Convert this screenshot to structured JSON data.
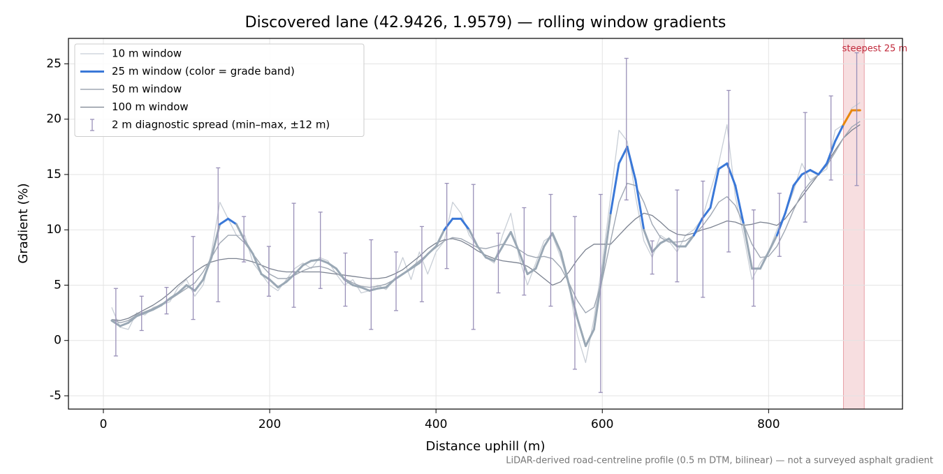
{
  "chart_data": {
    "type": "line",
    "title": "Discovered lane (42.9426, 1.9579) — rolling window gradients",
    "x_label": "Distance uphill (m)",
    "y_label": "Gradient (%)",
    "footnote": "LiDAR-derived road-centreline profile (0.5 m DTM, bilinear) — not a surveyed asphalt gradient",
    "xlim": [
      -42,
      961
    ],
    "ylim": [
      -6.2,
      27.3
    ],
    "xticks": [
      0,
      200,
      400,
      600,
      800
    ],
    "yticks": [
      -5,
      0,
      5,
      10,
      15,
      20,
      25
    ],
    "grid": true,
    "legend": "upper left",
    "x": [
      10,
      20,
      30,
      40,
      50,
      60,
      70,
      80,
      90,
      100,
      110,
      120,
      130,
      140,
      150,
      160,
      170,
      180,
      190,
      200,
      210,
      220,
      230,
      240,
      250,
      260,
      270,
      280,
      290,
      300,
      310,
      320,
      330,
      340,
      350,
      360,
      370,
      380,
      390,
      400,
      410,
      420,
      430,
      440,
      450,
      460,
      470,
      480,
      490,
      500,
      510,
      520,
      530,
      540,
      550,
      560,
      570,
      580,
      590,
      600,
      610,
      620,
      630,
      640,
      650,
      660,
      670,
      680,
      690,
      700,
      710,
      720,
      730,
      740,
      750,
      760,
      770,
      780,
      790,
      800,
      810,
      820,
      830,
      840,
      850,
      860,
      870,
      880,
      890,
      900,
      910
    ],
    "series": [
      {
        "name": "10 m window",
        "color": "#c8ced6",
        "width": 1.3,
        "values": [
          3.0,
          1.2,
          1.0,
          2.5,
          2.3,
          3.0,
          3.2,
          3.5,
          4.8,
          5.5,
          4.0,
          5.0,
          8.0,
          12.5,
          11.0,
          9.5,
          9.5,
          7.0,
          6.0,
          5.0,
          4.5,
          5.5,
          6.5,
          7.0,
          6.5,
          7.5,
          7.2,
          6.0,
          5.0,
          5.5,
          4.3,
          4.5,
          5.0,
          4.6,
          5.5,
          7.5,
          5.5,
          8.0,
          6.0,
          8.0,
          9.0,
          12.5,
          11.5,
          9.5,
          8.5,
          7.5,
          7.0,
          9.5,
          11.5,
          7.5,
          5.0,
          7.0,
          9.0,
          9.5,
          7.5,
          5.0,
          0.5,
          -2.0,
          2.0,
          7.0,
          13.0,
          19.0,
          18.0,
          13.0,
          9.0,
          7.5,
          9.5,
          9.0,
          8.0,
          9.5,
          10.0,
          11.0,
          13.5,
          16.0,
          19.5,
          13.0,
          9.5,
          5.5,
          7.0,
          8.0,
          10.0,
          11.5,
          13.5,
          16.0,
          14.5,
          15.0,
          15.5,
          19.0,
          19.5,
          21.0,
          21.5
        ]
      },
      {
        "name": "100 m window",
        "color": "#7b8290",
        "width": 1.3,
        "values": [
          1.9,
          1.8,
          2.0,
          2.4,
          2.8,
          3.2,
          3.7,
          4.3,
          5.0,
          5.6,
          6.2,
          6.7,
          7.1,
          7.3,
          7.4,
          7.4,
          7.3,
          7.1,
          6.8,
          6.5,
          6.3,
          6.2,
          6.2,
          6.2,
          6.2,
          6.2,
          6.1,
          6.0,
          5.9,
          5.8,
          5.7,
          5.6,
          5.6,
          5.7,
          6.0,
          6.4,
          7.0,
          7.6,
          8.3,
          8.8,
          9.1,
          9.2,
          9.0,
          8.6,
          8.1,
          7.7,
          7.4,
          7.2,
          7.1,
          7.0,
          6.7,
          6.2,
          5.6,
          5.0,
          5.3,
          6.2,
          7.3,
          8.2,
          8.7,
          8.7,
          8.7,
          9.5,
          10.3,
          11.0,
          11.5,
          11.3,
          10.7,
          10.0,
          9.6,
          9.5,
          9.7,
          10.0,
          10.2,
          10.5,
          10.8,
          10.7,
          10.4,
          10.5,
          10.7,
          10.6,
          10.4,
          11.0,
          12.0,
          13.0,
          14.0,
          15.0,
          16.0,
          17.2,
          18.3,
          19.0,
          19.5
        ]
      },
      {
        "name": "50 m window",
        "color": "#9fa7b3",
        "width": 1.4,
        "values": [
          1.9,
          1.6,
          1.8,
          2.3,
          2.6,
          2.9,
          3.3,
          3.7,
          4.2,
          4.7,
          5.2,
          6.2,
          7.5,
          8.8,
          9.5,
          9.5,
          8.8,
          7.8,
          6.8,
          6.0,
          5.6,
          5.6,
          5.9,
          6.3,
          6.6,
          6.7,
          6.5,
          6.1,
          5.6,
          5.2,
          4.9,
          4.8,
          4.9,
          5.1,
          5.5,
          6.0,
          6.6,
          7.2,
          7.8,
          8.4,
          9.0,
          9.3,
          9.2,
          8.8,
          8.4,
          8.3,
          8.5,
          8.7,
          8.6,
          8.2,
          7.7,
          7.5,
          7.6,
          7.4,
          6.6,
          5.2,
          3.6,
          2.5,
          3.0,
          5.5,
          9.0,
          12.5,
          14.2,
          14.0,
          12.5,
          10.5,
          9.3,
          8.9,
          8.9,
          9.0,
          9.5,
          10.3,
          11.3,
          12.5,
          13.0,
          12.2,
          10.5,
          8.7,
          7.5,
          7.6,
          8.5,
          10.0,
          11.8,
          13.3,
          14.3,
          15.0,
          15.8,
          17.0,
          18.3,
          19.3,
          19.8
        ]
      },
      {
        "name": "25 m window (color = grade band)",
        "color": "#3a78d8",
        "width": 3,
        "band_limits": [
          10,
          20
        ],
        "band_colors": [
          "#9aa8b5",
          "#3a78d8",
          "#e8870c"
        ],
        "values": [
          1.8,
          1.3,
          1.6,
          2.2,
          2.5,
          2.8,
          3.2,
          3.8,
          4.3,
          5.0,
          4.5,
          5.5,
          7.5,
          10.5,
          11.0,
          10.5,
          9.0,
          7.8,
          6.0,
          5.5,
          4.8,
          5.3,
          6.0,
          6.8,
          7.2,
          7.3,
          7.0,
          6.5,
          5.5,
          5.0,
          4.8,
          4.5,
          4.7,
          4.8,
          5.5,
          6.0,
          6.5,
          7.0,
          7.8,
          8.5,
          10.0,
          11.0,
          11.0,
          10.0,
          8.5,
          7.5,
          7.2,
          8.5,
          9.8,
          8.0,
          6.0,
          6.5,
          8.5,
          9.7,
          8.0,
          5.0,
          2.0,
          -0.5,
          1.0,
          6.0,
          11.5,
          16.0,
          17.5,
          14.5,
          10.0,
          8.0,
          8.8,
          9.2,
          8.5,
          8.5,
          9.5,
          11.0,
          12.0,
          15.5,
          16.0,
          14.0,
          10.5,
          6.5,
          6.5,
          8.0,
          9.5,
          11.5,
          14.0,
          15.0,
          15.4,
          15.0,
          16.0,
          18.0,
          19.5,
          20.8,
          20.8
        ]
      }
    ],
    "error_bars": {
      "name": "2 m diagnostic spread (min–max, ±12 m)",
      "color": "#9990b8",
      "x": [
        15,
        46,
        76,
        108,
        138,
        169,
        199,
        229,
        261,
        291,
        322,
        352,
        383,
        413,
        445,
        475,
        506,
        538,
        567,
        598,
        629,
        660,
        690,
        721,
        752,
        782,
        813,
        844,
        875,
        906
      ],
      "low": [
        -1.4,
        0.9,
        2.4,
        1.9,
        3.5,
        7.1,
        4.0,
        3.0,
        4.7,
        3.1,
        1.0,
        2.7,
        3.5,
        6.5,
        1.0,
        4.3,
        4.1,
        3.1,
        -2.6,
        -4.7,
        12.7,
        6.0,
        5.3,
        3.9,
        8.0,
        3.1,
        7.6,
        10.7,
        14.5,
        14.0
      ],
      "high": [
        4.7,
        4.0,
        4.8,
        9.4,
        15.6,
        11.2,
        8.5,
        12.4,
        11.6,
        7.9,
        9.1,
        8.0,
        10.3,
        14.2,
        14.1,
        9.7,
        12.0,
        13.2,
        11.2,
        13.2,
        25.5,
        9.0,
        13.6,
        14.4,
        22.6,
        11.8,
        13.3,
        20.6,
        22.1,
        26.0
      ]
    },
    "highlight": {
      "label": "steepest 25 m",
      "color": "#e8a0a6",
      "range": [
        890,
        915
      ]
    }
  }
}
